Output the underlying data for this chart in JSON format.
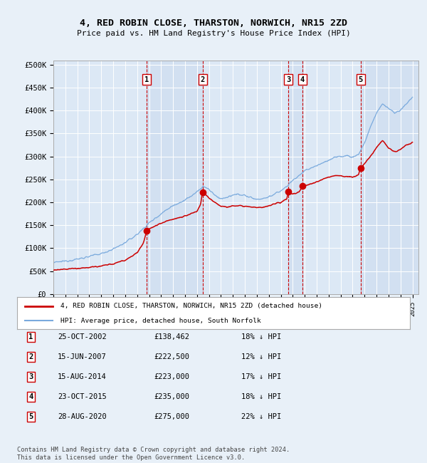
{
  "title": "4, RED ROBIN CLOSE, THARSTON, NORWICH, NR15 2ZD",
  "subtitle": "Price paid vs. HM Land Registry's House Price Index (HPI)",
  "xlim_start": 1995.0,
  "xlim_end": 2025.5,
  "ylim_min": 0,
  "ylim_max": 510000,
  "yticks": [
    0,
    50000,
    100000,
    150000,
    200000,
    250000,
    300000,
    350000,
    400000,
    450000,
    500000
  ],
  "ytick_labels": [
    "£0",
    "£50K",
    "£100K",
    "£150K",
    "£200K",
    "£250K",
    "£300K",
    "£350K",
    "£400K",
    "£450K",
    "£500K"
  ],
  "bg_color": "#e8f0f8",
  "plot_bg_color": "#dce8f5",
  "grid_color": "#ffffff",
  "red_line_color": "#cc0000",
  "blue_line_color": "#7aaadd",
  "sale_points": [
    {
      "num": 1,
      "year": 2002.81,
      "price": 138462
    },
    {
      "num": 2,
      "year": 2007.46,
      "price": 222500
    },
    {
      "num": 3,
      "year": 2014.62,
      "price": 223000
    },
    {
      "num": 4,
      "year": 2015.81,
      "price": 235000
    },
    {
      "num": 5,
      "year": 2020.66,
      "price": 275000
    }
  ],
  "legend_red_label": "4, RED ROBIN CLOSE, THARSTON, NORWICH, NR15 2ZD (detached house)",
  "legend_blue_label": "HPI: Average price, detached house, South Norfolk",
  "footer": "Contains HM Land Registry data © Crown copyright and database right 2024.\nThis data is licensed under the Open Government Licence v3.0.",
  "table_rows": [
    {
      "num": 1,
      "date": "25-OCT-2002",
      "price": "£138,462",
      "info": "18% ↓ HPI"
    },
    {
      "num": 2,
      "date": "15-JUN-2007",
      "price": "£222,500",
      "info": "12% ↓ HPI"
    },
    {
      "num": 3,
      "date": "15-AUG-2014",
      "price": "£223,000",
      "info": "17% ↓ HPI"
    },
    {
      "num": 4,
      "date": "23-OCT-2015",
      "price": "£235,000",
      "info": "18% ↓ HPI"
    },
    {
      "num": 5,
      "date": "28-AUG-2020",
      "price": "£275,000",
      "info": "22% ↓ HPI"
    }
  ],
  "hpi_anchors": [
    [
      1995.0,
      68000
    ],
    [
      1995.5,
      70000
    ],
    [
      1996.0,
      72000
    ],
    [
      1997.0,
      76000
    ],
    [
      1998.0,
      82000
    ],
    [
      1999.0,
      88000
    ],
    [
      2000.0,
      98000
    ],
    [
      2001.0,
      112000
    ],
    [
      2002.0,
      130000
    ],
    [
      2003.0,
      155000
    ],
    [
      2004.0,
      175000
    ],
    [
      2004.5,
      185000
    ],
    [
      2005.0,
      193000
    ],
    [
      2006.0,
      205000
    ],
    [
      2007.0,
      222000
    ],
    [
      2007.5,
      235000
    ],
    [
      2008.0,
      228000
    ],
    [
      2008.5,
      215000
    ],
    [
      2009.0,
      208000
    ],
    [
      2009.5,
      210000
    ],
    [
      2010.0,
      215000
    ],
    [
      2010.5,
      218000
    ],
    [
      2011.0,
      215000
    ],
    [
      2011.5,
      210000
    ],
    [
      2012.0,
      207000
    ],
    [
      2012.5,
      208000
    ],
    [
      2013.0,
      212000
    ],
    [
      2013.5,
      218000
    ],
    [
      2014.0,
      225000
    ],
    [
      2014.5,
      235000
    ],
    [
      2015.0,
      248000
    ],
    [
      2015.5,
      258000
    ],
    [
      2016.0,
      268000
    ],
    [
      2016.5,
      275000
    ],
    [
      2017.0,
      280000
    ],
    [
      2017.5,
      286000
    ],
    [
      2018.0,
      292000
    ],
    [
      2018.5,
      298000
    ],
    [
      2019.0,
      300000
    ],
    [
      2019.5,
      302000
    ],
    [
      2020.0,
      298000
    ],
    [
      2020.5,
      305000
    ],
    [
      2021.0,
      330000
    ],
    [
      2021.5,
      365000
    ],
    [
      2022.0,
      395000
    ],
    [
      2022.5,
      415000
    ],
    [
      2023.0,
      405000
    ],
    [
      2023.5,
      395000
    ],
    [
      2024.0,
      400000
    ],
    [
      2024.5,
      415000
    ],
    [
      2025.0,
      430000
    ]
  ],
  "red_anchors": [
    [
      1995.0,
      52000
    ],
    [
      1995.5,
      53000
    ],
    [
      1996.0,
      54000
    ],
    [
      1997.0,
      56000
    ],
    [
      1998.0,
      58000
    ],
    [
      1999.0,
      61000
    ],
    [
      2000.0,
      66000
    ],
    [
      2001.0,
      74000
    ],
    [
      2002.0,
      90000
    ],
    [
      2002.5,
      110000
    ],
    [
      2002.81,
      138462
    ],
    [
      2003.0,
      142000
    ],
    [
      2003.5,
      148000
    ],
    [
      2004.0,
      155000
    ],
    [
      2004.5,
      160000
    ],
    [
      2005.0,
      163000
    ],
    [
      2006.0,
      170000
    ],
    [
      2007.0,
      180000
    ],
    [
      2007.3,
      195000
    ],
    [
      2007.46,
      222500
    ],
    [
      2007.7,
      218000
    ],
    [
      2008.0,
      210000
    ],
    [
      2008.5,
      200000
    ],
    [
      2009.0,
      192000
    ],
    [
      2009.5,
      190000
    ],
    [
      2010.0,
      192000
    ],
    [
      2010.5,
      193000
    ],
    [
      2011.0,
      192000
    ],
    [
      2011.5,
      190000
    ],
    [
      2012.0,
      188000
    ],
    [
      2012.5,
      189000
    ],
    [
      2013.0,
      192000
    ],
    [
      2013.5,
      196000
    ],
    [
      2014.0,
      200000
    ],
    [
      2014.5,
      208000
    ],
    [
      2014.62,
      223000
    ],
    [
      2015.0,
      218000
    ],
    [
      2015.5,
      222000
    ],
    [
      2015.81,
      235000
    ],
    [
      2016.0,
      236000
    ],
    [
      2016.5,
      240000
    ],
    [
      2017.0,
      245000
    ],
    [
      2017.5,
      250000
    ],
    [
      2018.0,
      255000
    ],
    [
      2018.5,
      258000
    ],
    [
      2019.0,
      258000
    ],
    [
      2019.5,
      256000
    ],
    [
      2020.0,
      255000
    ],
    [
      2020.5,
      260000
    ],
    [
      2020.66,
      275000
    ],
    [
      2021.0,
      285000
    ],
    [
      2021.5,
      300000
    ],
    [
      2022.0,
      320000
    ],
    [
      2022.5,
      335000
    ],
    [
      2023.0,
      318000
    ],
    [
      2023.5,
      310000
    ],
    [
      2024.0,
      315000
    ],
    [
      2024.5,
      325000
    ],
    [
      2025.0,
      330000
    ]
  ]
}
